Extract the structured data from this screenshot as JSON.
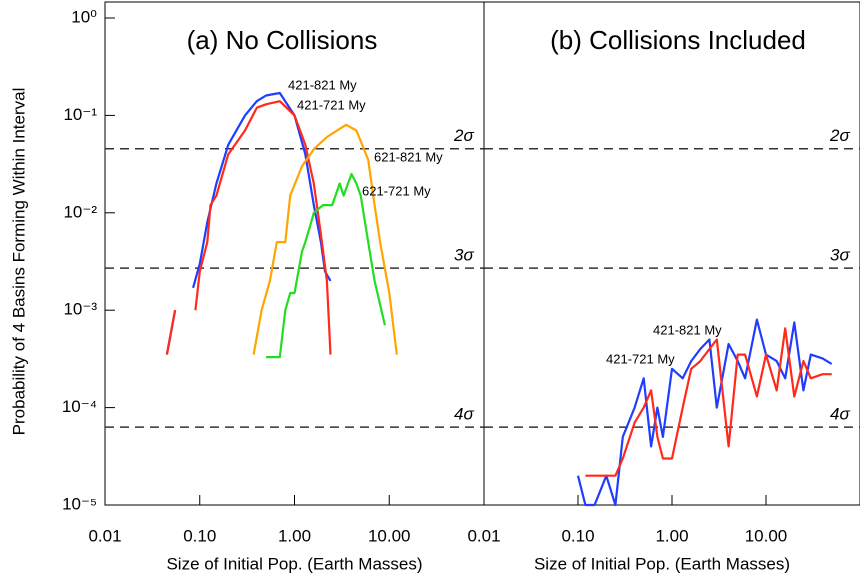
{
  "chart_data": [
    {
      "type": "line",
      "title": "(a) No Collisions",
      "x_label": "Size of Initial Pop. (Earth Masses)",
      "y_label": "Probability of 4 Basins Forming Within Interval",
      "log_x": true,
      "log_y": true,
      "xlim": [
        0.01,
        100
      ],
      "ylim": [
        1e-05,
        1
      ],
      "xticks": [
        {
          "value": 0.01,
          "label": "0.01"
        },
        {
          "value": 0.1,
          "label": "0.10"
        },
        {
          "value": 1,
          "label": "1.00"
        },
        {
          "value": 10,
          "label": "10.00"
        }
      ],
      "yticks": [
        {
          "value": 1,
          "label": "10⁰"
        },
        {
          "value": 0.1,
          "label": "10⁻¹"
        },
        {
          "value": 0.01,
          "label": "10⁻²"
        },
        {
          "value": 0.001,
          "label": "10⁻³"
        },
        {
          "value": 0.0001,
          "label": "10⁻⁴"
        },
        {
          "value": 1e-05,
          "label": "10⁻⁵"
        }
      ],
      "hlines": [
        {
          "value": 0.0455,
          "label": "2σ"
        },
        {
          "value": 0.0027,
          "label": "3σ"
        },
        {
          "value": 6.3e-05,
          "label": "4σ"
        }
      ],
      "series": [
        {
          "name": "421-821 My",
          "color": "#1f3dff",
          "x": [
            0.045,
            0.055,
            null,
            0.085,
            0.1,
            0.12,
            0.15,
            0.2,
            0.3,
            0.4,
            0.5,
            0.7,
            1.0,
            1.3,
            1.6,
            1.9,
            2.1,
            2.4
          ],
          "values": [
            0.00035,
            0.001,
            null,
            0.0017,
            0.003,
            0.008,
            0.02,
            0.05,
            0.1,
            0.14,
            0.16,
            0.17,
            0.1,
            0.04,
            0.012,
            0.005,
            0.0025,
            0.002
          ]
        },
        {
          "name": "421-721 My",
          "color": "#ff2a1a",
          "x": [
            0.045,
            0.055,
            null,
            0.09,
            0.1,
            0.12,
            0.13,
            0.15,
            0.2,
            0.3,
            0.4,
            0.5,
            0.7,
            1.0,
            1.3,
            1.6,
            1.9,
            2.2,
            2.4
          ],
          "values": [
            0.00035,
            0.001,
            null,
            0.001,
            0.0025,
            0.005,
            0.012,
            0.015,
            0.04,
            0.07,
            0.12,
            0.13,
            0.14,
            0.1,
            0.05,
            0.02,
            0.006,
            0.002,
            0.00035
          ]
        },
        {
          "name": "621-821 My",
          "color": "#ffa500",
          "x": [
            0.37,
            0.45,
            0.55,
            0.65,
            0.8,
            0.9,
            1.2,
            1.6,
            2.2,
            3.5,
            4.5,
            6,
            7,
            8,
            10,
            12
          ],
          "values": [
            0.00035,
            0.001,
            0.002,
            0.005,
            0.005,
            0.015,
            0.03,
            0.045,
            0.06,
            0.08,
            0.07,
            0.035,
            0.012,
            0.005,
            0.0015,
            0.00035
          ]
        },
        {
          "name": "621-721 My",
          "color": "#22dd22",
          "x": [
            0.5,
            0.7,
            0.8,
            0.9,
            1.0,
            1.2,
            1.3,
            1.5,
            1.6,
            2,
            2.5,
            3,
            3.3,
            4,
            4.5,
            5,
            6,
            7,
            9
          ],
          "values": [
            0.00033,
            0.00033,
            0.001,
            0.0015,
            0.0015,
            0.004,
            0.005,
            0.008,
            0.01,
            0.012,
            0.012,
            0.02,
            0.015,
            0.025,
            0.02,
            0.015,
            0.005,
            0.002,
            0.0007
          ]
        }
      ]
    },
    {
      "type": "line",
      "title": "(b) Collisions Included",
      "x_label": "Size of Initial Pop. (Earth Masses)",
      "log_x": true,
      "log_y": true,
      "xlim": [
        0.01,
        100
      ],
      "ylim": [
        1e-05,
        1
      ],
      "xticks": [
        {
          "value": 0.01,
          "label": "0.01"
        },
        {
          "value": 0.1,
          "label": "0.10"
        },
        {
          "value": 1,
          "label": "1.00"
        },
        {
          "value": 10,
          "label": "10.00"
        }
      ],
      "hlines": [
        {
          "value": 0.0455,
          "label": "2σ"
        },
        {
          "value": 0.0027,
          "label": "3σ"
        },
        {
          "value": 6.3e-05,
          "label": "4σ"
        }
      ],
      "series": [
        {
          "name": "421-821 My",
          "color": "#1f3dff",
          "x": [
            0.1,
            0.12,
            0.15,
            0.2,
            0.25,
            0.3,
            0.4,
            0.5,
            0.6,
            0.7,
            0.8,
            1.0,
            1.3,
            1.6,
            2,
            2.5,
            3,
            4,
            5,
            6,
            8,
            10,
            13,
            16,
            20,
            25,
            30,
            40,
            50
          ],
          "values": [
            2e-05,
            1e-05,
            1e-05,
            2e-05,
            1e-05,
            5e-05,
            0.0001,
            0.0002,
            4e-05,
            0.0001,
            5e-05,
            0.00025,
            0.0002,
            0.0003,
            0.0004,
            0.0005,
            0.0001,
            0.00045,
            0.0003,
            0.0002,
            0.0008,
            0.00035,
            0.0003,
            0.0002,
            0.00075,
            0.00015,
            0.00035,
            0.00032,
            0.00028
          ]
        },
        {
          "name": "421-721 My",
          "color": "#ff2a1a",
          "x": [
            0.12,
            0.15,
            0.2,
            0.25,
            0.3,
            0.4,
            0.5,
            0.6,
            0.7,
            0.8,
            1.0,
            1.3,
            1.6,
            2,
            2.5,
            3,
            4,
            5,
            6,
            8,
            10,
            13,
            16,
            20,
            25,
            30,
            40,
            50
          ],
          "values": [
            2e-05,
            2e-05,
            2e-05,
            2e-05,
            3e-05,
            7e-05,
            0.0001,
            0.00015,
            5e-05,
            3e-05,
            3e-05,
            0.0001,
            0.00025,
            0.0003,
            0.0004,
            0.0005,
            4e-05,
            0.00035,
            0.00035,
            0.00013,
            0.00035,
            0.00015,
            0.00065,
            0.00013,
            0.0003,
            0.0002,
            0.00022,
            0.00022
          ]
        }
      ]
    }
  ]
}
